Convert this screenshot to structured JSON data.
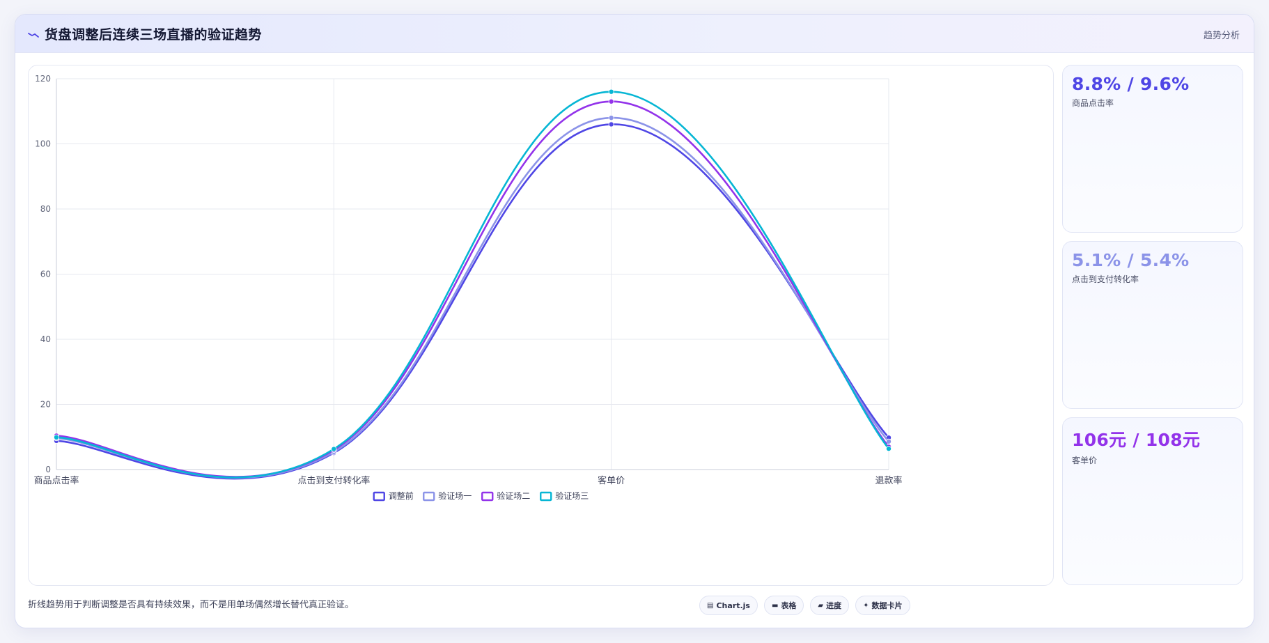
{
  "header": {
    "title": "货盘调整后连续三场直播的验证趋势",
    "tag": "趋势分析"
  },
  "chart_data": {
    "type": "line",
    "categories": [
      "商品点击率",
      "点击到支付转化率",
      "客单价",
      "退款率"
    ],
    "y_ticks": [
      "0",
      "20",
      "40",
      "60",
      "80",
      "100",
      "120"
    ],
    "ylim": [
      0,
      120
    ],
    "grid": true,
    "legend_position": "bottom",
    "series": [
      {
        "name": "调整前",
        "color": "#4f46e5",
        "values": [
          8.8,
          5.1,
          106,
          9.8
        ]
      },
      {
        "name": "验证场一",
        "color": "#8b93e8",
        "values": [
          9.6,
          5.4,
          108,
          8.6
        ]
      },
      {
        "name": "验证场二",
        "color": "#9333ea",
        "values": [
          10.4,
          6.0,
          113,
          7.0
        ]
      },
      {
        "name": "验证场三",
        "color": "#06b6d4",
        "values": [
          9.9,
          6.3,
          116,
          6.4
        ]
      }
    ]
  },
  "stats": [
    {
      "value": "8.8% / 9.6%",
      "label": "商品点击率",
      "color": "#4f46e5"
    },
    {
      "value": "5.1% / 5.4%",
      "label": "点击到支付转化率",
      "color": "#8b93e8"
    },
    {
      "value": "106元 / 108元",
      "label": "客单价",
      "color": "#9333ea"
    }
  ],
  "footnote": "折线趋势用于判断调整是否具有持续效果，而不是用单场偶然增长替代真正验证。",
  "chips": [
    {
      "icon": "▤",
      "label": "Chart.js",
      "icon_name": "chart-icon"
    },
    {
      "icon": "▬",
      "label": "表格",
      "icon_name": "table-icon"
    },
    {
      "icon": "▰",
      "label": "进度",
      "icon_name": "progress-icon"
    },
    {
      "icon": "✦",
      "label": "数据卡片",
      "icon_name": "card-icon"
    }
  ]
}
